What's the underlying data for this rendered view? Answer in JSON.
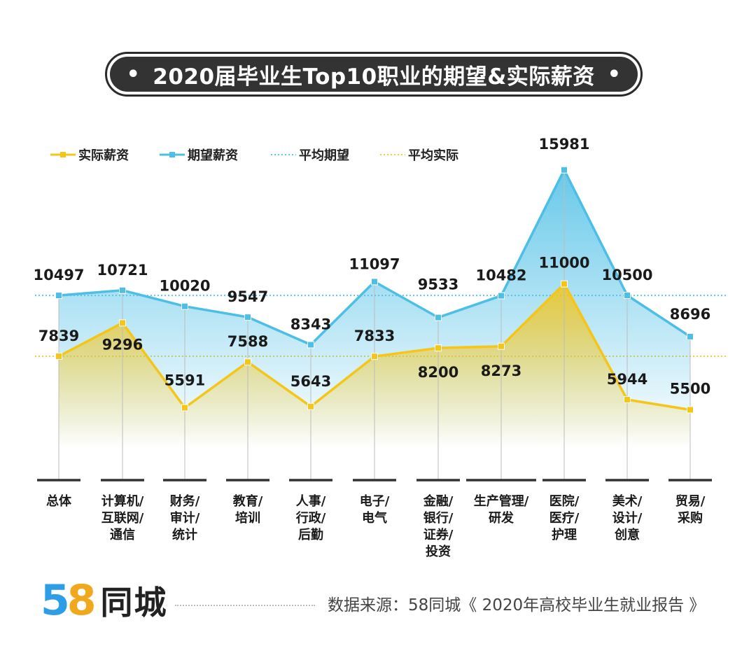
{
  "title": "2020届毕业生Top10职业的期望&实际薪资",
  "title_dot": "•",
  "source": "数据来源：58同城《 2020年高校毕业生就业报告 》",
  "logo": {
    "digit1": "5",
    "digit2": "8",
    "text": "同城"
  },
  "colors": {
    "actual": "#f5c518",
    "expected": "#4dbfe6",
    "avg_expected": "#5cc8e8",
    "avg_actual": "#f2cc3a",
    "axis": "#333333",
    "drop_line": "#bcbcbc"
  },
  "chart_data": {
    "type": "line",
    "legend_position": "top-left",
    "categories": [
      [
        "总体"
      ],
      [
        "计算机/",
        "互联网/",
        "通信"
      ],
      [
        "财务/",
        "审计/",
        "统计"
      ],
      [
        "教育/",
        "培训"
      ],
      [
        "人事/",
        "行政/",
        "后勤"
      ],
      [
        "电子/",
        "电气"
      ],
      [
        "金融/",
        "银行/",
        "证券/",
        "投资"
      ],
      [
        "生产管理/",
        "研发"
      ],
      [
        "医院/",
        "医疗/",
        "护理"
      ],
      [
        "美术/",
        "设计/",
        "创意"
      ],
      [
        "贸易/",
        "采购"
      ]
    ],
    "series": [
      {
        "name": "实际薪资",
        "key": "actual",
        "values": [
          7839,
          9296,
          5591,
          7588,
          5643,
          7833,
          8200,
          8273,
          11000,
          5944,
          5500
        ]
      },
      {
        "name": "期望薪资",
        "key": "expected",
        "values": [
          10497,
          10721,
          10020,
          9547,
          8343,
          11097,
          9533,
          10482,
          15981,
          10500,
          8696
        ]
      }
    ],
    "reference_lines": [
      {
        "name": "平均期望",
        "key": "avg_expected",
        "value": 10497
      },
      {
        "name": "平均实际",
        "key": "avg_actual",
        "value": 7839
      }
    ]
  }
}
